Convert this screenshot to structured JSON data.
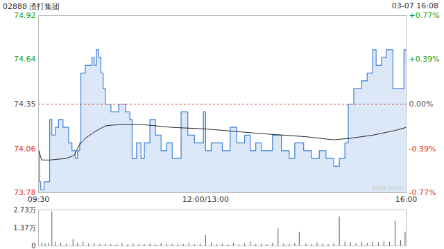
{
  "chart_data": [
    {
      "type": "line",
      "title": "02888 渣打集团",
      "subtitle": "03-07 16:08",
      "watermark": "sina.com",
      "xlim": [
        0,
        330
      ],
      "xticks": [
        {
          "value": 0,
          "label": "09:30"
        },
        {
          "value": 150,
          "label": "12:00/13:00"
        },
        {
          "value": 330,
          "label": "16:00"
        }
      ],
      "ylim": [
        73.78,
        74.92
      ],
      "yticks": [
        73.78,
        74.06,
        74.35,
        74.64,
        74.92
      ],
      "y2lim": [
        -0.77,
        0.77
      ],
      "y2ticks": [
        {
          "value": -0.77,
          "label": "-0.77%"
        },
        {
          "value": -0.39,
          "label": "-0.39%"
        },
        {
          "value": 0,
          "label": "0.00%"
        },
        {
          "value": 0.39,
          "label": "+0.39%"
        },
        {
          "value": 0.77,
          "label": "+0.77%"
        }
      ],
      "reference_line": 74.35,
      "grid": false,
      "series": [
        {
          "type": "area",
          "color": "#3f80d8",
          "x": [
            0,
            1,
            2,
            5,
            8,
            10,
            12,
            15,
            18,
            22,
            27,
            30,
            33,
            35,
            37,
            38,
            42,
            48,
            50,
            52,
            54,
            56,
            58,
            60,
            65,
            72,
            78,
            82,
            84,
            88,
            92,
            95,
            100,
            105,
            110,
            115,
            120,
            128,
            134,
            140,
            148,
            150,
            155,
            165,
            172,
            178,
            185,
            190,
            195,
            200,
            210,
            218,
            225,
            230,
            238,
            245,
            252,
            258,
            265,
            270,
            275,
            278,
            283,
            290,
            295,
            300,
            303,
            308,
            312,
            318,
            325,
            328,
            330
          ],
          "values": [
            74.05,
            73.85,
            73.8,
            73.85,
            73.85,
            74.25,
            74.15,
            74.2,
            74.25,
            74.2,
            74.1,
            74.05,
            74.0,
            74.05,
            74.1,
            74.55,
            74.6,
            74.65,
            74.6,
            74.7,
            74.65,
            74.55,
            74.45,
            74.35,
            74.3,
            74.35,
            74.3,
            74.25,
            74.0,
            74.1,
            74.0,
            74.1,
            74.25,
            74.15,
            74.05,
            74.1,
            74.0,
            74.3,
            74.15,
            74.1,
            74.3,
            74.05,
            74.1,
            74.05,
            74.2,
            74.1,
            74.15,
            74.05,
            74.1,
            74.05,
            74.15,
            74.05,
            74.0,
            74.1,
            74.05,
            74.0,
            74.05,
            74.0,
            73.95,
            74.0,
            74.1,
            74.35,
            74.45,
            74.5,
            74.55,
            74.7,
            74.6,
            74.65,
            74.7,
            74.45,
            74.45,
            74.7,
            74.6
          ]
        },
        {
          "type": "line",
          "color": "#222222",
          "x": [
            0,
            3,
            10,
            25,
            32,
            36,
            42,
            50,
            60,
            75,
            90,
            120,
            150,
            200,
            240,
            265,
            280,
            300,
            320,
            330
          ],
          "values": [
            74.05,
            73.99,
            73.99,
            74.0,
            74.02,
            74.08,
            74.13,
            74.17,
            74.21,
            74.22,
            74.22,
            74.2,
            74.19,
            74.16,
            74.14,
            74.12,
            74.13,
            74.15,
            74.18,
            74.2
          ]
        }
      ]
    },
    {
      "type": "bar",
      "color": "#555555",
      "tick_labels": "y",
      "xlim": [
        0,
        330
      ],
      "ylim": [
        0,
        2.73
      ],
      "yticks": [
        0,
        {
          "value": 1.37,
          "label": "1.37万"
        },
        {
          "value": 2.73,
          "label": "2.73万"
        }
      ],
      "x": [
        0,
        3,
        6,
        9,
        12,
        15,
        20,
        25,
        31,
        35,
        40,
        45,
        50,
        55,
        60,
        65,
        70,
        75,
        80,
        85,
        90,
        95,
        100,
        105,
        110,
        115,
        120,
        125,
        130,
        135,
        140,
        145,
        150,
        155,
        160,
        165,
        170,
        175,
        180,
        185,
        190,
        195,
        200,
        205,
        210,
        215,
        220,
        225,
        230,
        234,
        240,
        245,
        250,
        255,
        260,
        265,
        270,
        275,
        280,
        285,
        290,
        295,
        300,
        305,
        310,
        315,
        320,
        325,
        329
      ],
      "values": [
        0.25,
        0.2,
        0.15,
        0.2,
        2.6,
        0.3,
        0.2,
        0.15,
        0.5,
        0.2,
        0.3,
        0.15,
        0.2,
        0.1,
        0.15,
        0.1,
        0.1,
        0.2,
        0.1,
        0.15,
        0.1,
        0.1,
        0.15,
        0.1,
        0.2,
        0.1,
        0.1,
        0.15,
        0.1,
        0.2,
        0.1,
        0.15,
        0.8,
        0.2,
        0.1,
        0.15,
        0.1,
        0.2,
        0.1,
        0.15,
        0.3,
        0.1,
        0.15,
        0.1,
        0.2,
        1.3,
        0.15,
        0.1,
        0.2,
        1.05,
        0.15,
        0.1,
        0.2,
        0.15,
        0.1,
        0.2,
        2.2,
        0.3,
        0.25,
        0.2,
        0.3,
        0.2,
        0.3,
        0.25,
        0.35,
        0.3,
        1.9,
        0.4,
        1.05
      ]
    }
  ]
}
